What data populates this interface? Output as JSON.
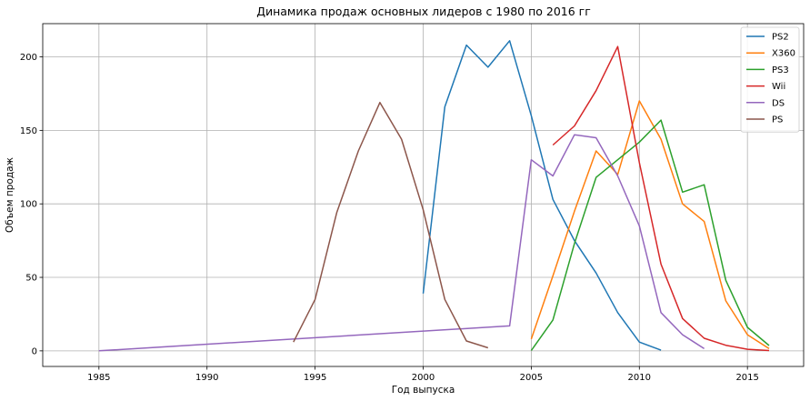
{
  "chart_data": {
    "type": "line",
    "title": "Динамика продаж основных лидеров с 1980 по 2016 гг",
    "xlabel": "Год выпуска",
    "ylabel": "Объем продаж",
    "xlim": [
      1982.4,
      2017.6
    ],
    "ylim": [
      -10.6,
      222.6
    ],
    "xticks": [
      1985,
      1990,
      1995,
      2000,
      2005,
      2010,
      2015
    ],
    "yticks": [
      0,
      50,
      100,
      150,
      200
    ],
    "grid": true,
    "legend_position": "top-right",
    "series": [
      {
        "name": "PS2",
        "color": "#1f77b4",
        "x": [
          2000,
          2001,
          2002,
          2003,
          2004,
          2005,
          2006,
          2007,
          2008,
          2009,
          2010,
          2011
        ],
        "y": [
          39,
          166,
          208,
          193,
          211,
          160,
          103,
          75,
          53,
          26,
          6,
          0.5
        ]
      },
      {
        "name": "X360",
        "color": "#ff7f0e",
        "x": [
          2005,
          2006,
          2007,
          2008,
          2009,
          2010,
          2011,
          2012,
          2013,
          2014,
          2015,
          2016
        ],
        "y": [
          8,
          51,
          95,
          136,
          120,
          170,
          144,
          100,
          88,
          34,
          11,
          1.5
        ]
      },
      {
        "name": "PS3",
        "color": "#2ca02c",
        "x": [
          2005,
          2006,
          2007,
          2008,
          2009,
          2010,
          2011,
          2012,
          2013,
          2014,
          2015,
          2016
        ],
        "y": [
          0.2,
          21,
          73,
          118,
          130,
          142,
          157,
          108,
          113,
          48,
          16,
          3.6
        ]
      },
      {
        "name": "Wii",
        "color": "#d62728",
        "x": [
          2006,
          2007,
          2008,
          2009,
          2010,
          2011,
          2012,
          2013,
          2014,
          2015,
          2016
        ],
        "y": [
          140,
          153,
          177,
          207,
          128,
          59,
          22,
          8.6,
          3.8,
          1.1,
          0.2
        ]
      },
      {
        "name": "DS",
        "color": "#9467bd",
        "x": [
          1985,
          2004,
          2005,
          2006,
          2007,
          2008,
          2009,
          2010,
          2011,
          2012,
          2013
        ],
        "y": [
          0.02,
          17,
          130,
          119,
          147,
          145,
          119,
          85,
          26,
          11,
          1.5
        ]
      },
      {
        "name": "PS",
        "color": "#8c564b",
        "x": [
          1994,
          1995,
          1996,
          1997,
          1998,
          1999,
          2000,
          2001,
          2002,
          2003
        ],
        "y": [
          6,
          35,
          94,
          136,
          169,
          144,
          96,
          35,
          6.7,
          2.1
        ]
      }
    ]
  }
}
